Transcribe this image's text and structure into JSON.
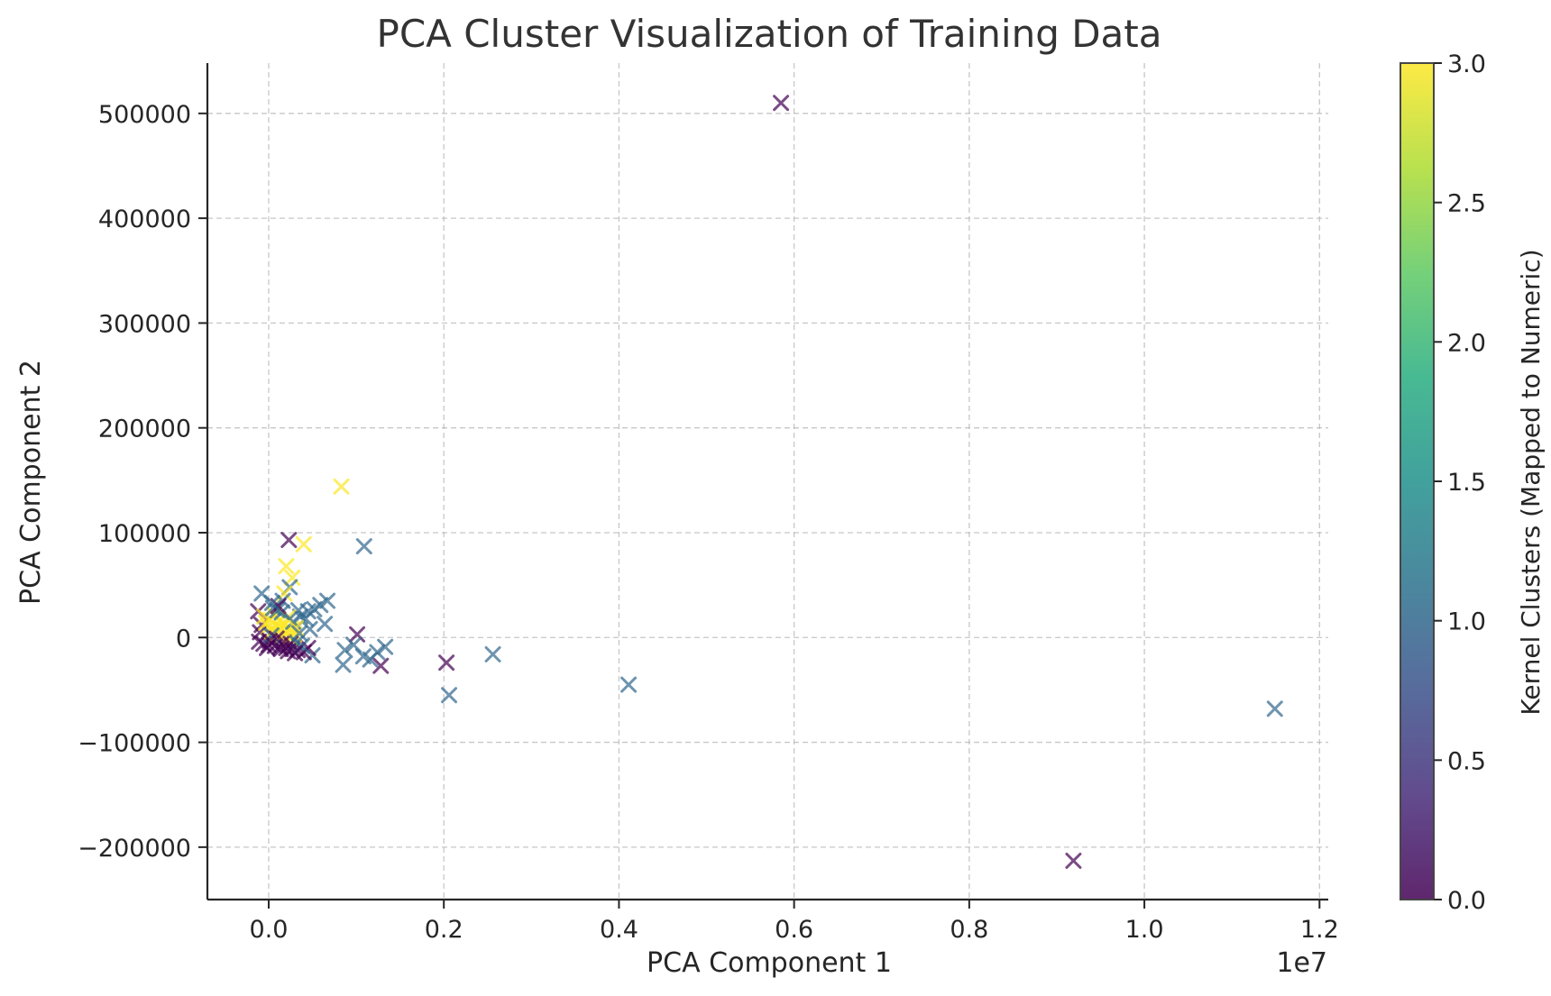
{
  "chart_data": {
    "type": "scatter",
    "title": "PCA Cluster Visualization of Training Data",
    "xlabel": "PCA Component 1",
    "ylabel": "PCA Component 2",
    "x_offset_text": "1e7",
    "x_scale": 10000000,
    "xlim": [
      -0.07,
      1.21
    ],
    "ylim": [
      -250000,
      548000
    ],
    "xticks": [
      0.0,
      0.2,
      0.4,
      0.6,
      0.8,
      1.0,
      1.2
    ],
    "xtick_labels": [
      "0.0",
      "0.2",
      "0.4",
      "0.6",
      "0.8",
      "1.0",
      "1.2"
    ],
    "yticks": [
      -200000,
      -100000,
      0,
      100000,
      200000,
      300000,
      400000,
      500000
    ],
    "ytick_labels": [
      "−200000",
      "−100000",
      "0",
      "100000",
      "200000",
      "300000",
      "400000",
      "500000"
    ],
    "grid": true,
    "marker": "x",
    "colormap": "viridis",
    "colors": [
      "#440154",
      "#31688e",
      "#35b779",
      "#fde725"
    ],
    "colorbar": {
      "label": "Kernel Clusters (Mapped to Numeric)",
      "ticks": [
        0.0,
        0.5,
        1.0,
        1.5,
        2.0,
        2.5,
        3.0
      ],
      "tick_labels": [
        "0.0",
        "0.5",
        "1.0",
        "1.5",
        "2.0",
        "2.5",
        "3.0"
      ],
      "range": [
        0.0,
        3.0
      ]
    },
    "points": [
      {
        "x": 0.585,
        "y": 510000,
        "c": 0
      },
      {
        "x": 0.919,
        "y": -213000,
        "c": 0
      },
      {
        "x": 1.149,
        "y": -68000,
        "c": 1
      },
      {
        "x": 0.411,
        "y": -45000,
        "c": 1
      },
      {
        "x": 0.256,
        "y": -16000,
        "c": 1
      },
      {
        "x": 0.206,
        "y": -55000,
        "c": 1
      },
      {
        "x": 0.203,
        "y": -24000,
        "c": 0
      },
      {
        "x": 0.083,
        "y": 144000,
        "c": 3
      },
      {
        "x": 0.109,
        "y": 87000,
        "c": 1
      },
      {
        "x": 0.023,
        "y": 93000,
        "c": 0
      },
      {
        "x": 0.04,
        "y": 89000,
        "c": 3
      },
      {
        "x": 0.02,
        "y": 68000,
        "c": 3
      },
      {
        "x": 0.027,
        "y": 57000,
        "c": 3
      },
      {
        "x": 0.024,
        "y": 48000,
        "c": 1
      },
      {
        "x": 0.018,
        "y": 42000,
        "c": 3
      },
      {
        "x": 0.016,
        "y": 35000,
        "c": 1
      },
      {
        "x": -0.008,
        "y": 42000,
        "c": 1
      },
      {
        "x": 0.067,
        "y": 35000,
        "c": 1
      },
      {
        "x": 0.059,
        "y": 31000,
        "c": 1
      },
      {
        "x": 0.052,
        "y": 27000,
        "c": 1
      },
      {
        "x": 0.045,
        "y": 25000,
        "c": 1
      },
      {
        "x": 0.036,
        "y": 20000,
        "c": 1
      },
      {
        "x": 0.064,
        "y": 13000,
        "c": 1
      },
      {
        "x": 0.047,
        "y": 8000,
        "c": 1
      },
      {
        "x": 0.101,
        "y": 3000,
        "c": 0
      },
      {
        "x": 0.097,
        "y": -7000,
        "c": 1
      },
      {
        "x": 0.087,
        "y": -12000,
        "c": 1
      },
      {
        "x": 0.108,
        "y": -18000,
        "c": 1
      },
      {
        "x": 0.085,
        "y": -26000,
        "c": 1
      },
      {
        "x": 0.128,
        "y": -27000,
        "c": 0
      },
      {
        "x": 0.133,
        "y": -9000,
        "c": 1
      },
      {
        "x": 0.124,
        "y": -14000,
        "c": 1
      },
      {
        "x": 0.116,
        "y": -21000,
        "c": 1
      },
      {
        "x": 0.05,
        "y": -17000,
        "c": 1
      },
      {
        "x": 0.045,
        "y": -10000,
        "c": 0
      },
      {
        "x": 0.04,
        "y": -14000,
        "c": 0
      },
      {
        "x": 0.033,
        "y": -12000,
        "c": 0
      },
      {
        "x": 0.027,
        "y": -11000,
        "c": 0
      },
      {
        "x": 0.02,
        "y": -10000,
        "c": 0
      },
      {
        "x": 0.013,
        "y": -9000,
        "c": 0
      },
      {
        "x": 0.007,
        "y": -8000,
        "c": 0
      },
      {
        "x": 0.0,
        "y": -7000,
        "c": 0
      },
      {
        "x": -0.006,
        "y": -6000,
        "c": 0
      },
      {
        "x": -0.011,
        "y": -4000,
        "c": 0
      },
      {
        "x": -0.01,
        "y": 5000,
        "c": 0
      },
      {
        "x": -0.008,
        "y": 12000,
        "c": 0
      },
      {
        "x": -0.012,
        "y": 25000,
        "c": 0
      },
      {
        "x": -0.005,
        "y": 20000,
        "c": 3
      },
      {
        "x": -0.003,
        "y": 14000,
        "c": 3
      },
      {
        "x": 0.0,
        "y": 10000,
        "c": 3
      },
      {
        "x": 0.002,
        "y": 17000,
        "c": 3
      },
      {
        "x": 0.004,
        "y": 6000,
        "c": 3
      },
      {
        "x": 0.006,
        "y": 22000,
        "c": 3
      },
      {
        "x": 0.008,
        "y": 12000,
        "c": 3
      },
      {
        "x": 0.01,
        "y": 4000,
        "c": 3
      },
      {
        "x": 0.012,
        "y": 16000,
        "c": 3
      },
      {
        "x": 0.014,
        "y": 9000,
        "c": 3
      },
      {
        "x": 0.016,
        "y": 2000,
        "c": 3
      },
      {
        "x": 0.018,
        "y": 13000,
        "c": 3
      },
      {
        "x": 0.02,
        "y": 6000,
        "c": 3
      },
      {
        "x": 0.022,
        "y": 19000,
        "c": 3
      },
      {
        "x": 0.024,
        "y": 0,
        "c": 3
      },
      {
        "x": 0.026,
        "y": 8000,
        "c": 3
      },
      {
        "x": 0.029,
        "y": 3000,
        "c": 3
      },
      {
        "x": 0.005,
        "y": 28000,
        "c": 1
      },
      {
        "x": 0.01,
        "y": 26000,
        "c": 1
      },
      {
        "x": 0.015,
        "y": 24000,
        "c": 1
      },
      {
        "x": 0.003,
        "y": 2000,
        "c": 1
      },
      {
        "x": 0.001,
        "y": -3000,
        "c": 0
      },
      {
        "x": 0.009,
        "y": -1000,
        "c": 0
      },
      {
        "x": 0.017,
        "y": -4000,
        "c": 0
      },
      {
        "x": 0.025,
        "y": -6000,
        "c": 0
      },
      {
        "x": 0.032,
        "y": -5000,
        "c": 1
      },
      {
        "x": 0.038,
        "y": -8000,
        "c": 1
      },
      {
        "x": 0.03,
        "y": -15000,
        "c": 0
      },
      {
        "x": 0.022,
        "y": -13000,
        "c": 0
      },
      {
        "x": 0.014,
        "y": -11000,
        "c": 0
      },
      {
        "x": -0.002,
        "y": -10000,
        "c": 0
      },
      {
        "x": 0.011,
        "y": 30000,
        "c": 0
      },
      {
        "x": 0.004,
        "y": 33000,
        "c": 1
      },
      {
        "x": 0.034,
        "y": 26000,
        "c": 1
      },
      {
        "x": 0.042,
        "y": 18000,
        "c": 1
      },
      {
        "x": 0.028,
        "y": 15000,
        "c": 1
      },
      {
        "x": 0.031,
        "y": 9000,
        "c": 3
      },
      {
        "x": 0.035,
        "y": 4000,
        "c": 1
      }
    ]
  }
}
